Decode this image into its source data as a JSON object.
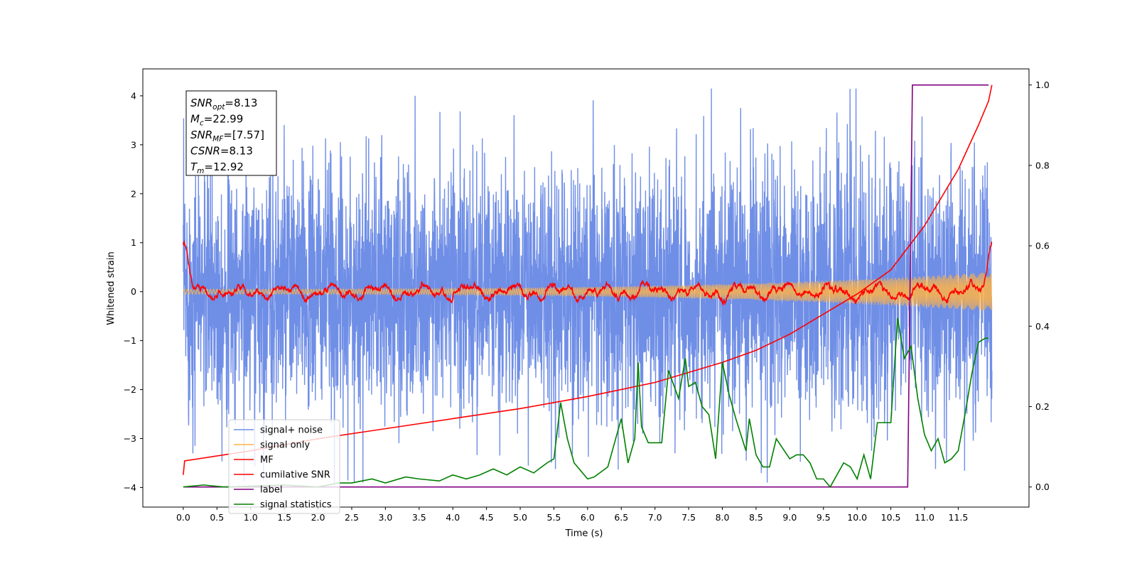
{
  "chart_data": {
    "type": "line",
    "xlabel": "Time (s)",
    "ylabel": "Whitened strain",
    "xlim": [
      -0.6,
      12.55
    ],
    "ylim": [
      -4.4,
      4.55
    ],
    "y2lim": [
      -0.05,
      1.04
    ],
    "x_ticks": [
      "0.0",
      "0.5",
      "1.0",
      "1.5",
      "2.0",
      "2.5",
      "3.0",
      "3.5",
      "4.0",
      "4.5",
      "5.0",
      "5.5",
      "6.0",
      "6.5",
      "7.0",
      "7.5",
      "8.0",
      "8.5",
      "9.0",
      "9.5",
      "10.0",
      "10.5",
      "11.0",
      "11.5"
    ],
    "x_tick_values": [
      0,
      0.5,
      1,
      1.5,
      2,
      2.5,
      3,
      3.5,
      4,
      4.5,
      5,
      5.5,
      6,
      6.5,
      7,
      7.5,
      8,
      8.5,
      9,
      9.5,
      10,
      10.5,
      11,
      11.5
    ],
    "y_ticks": [
      "−4",
      "−3",
      "−2",
      "−1",
      "0",
      "1",
      "2",
      "3",
      "4"
    ],
    "y_tick_values": [
      -4,
      -3,
      -2,
      -1,
      0,
      1,
      2,
      3,
      4
    ],
    "y2_ticks": [
      "0.0",
      "0.2",
      "0.4",
      "0.6",
      "0.8",
      "1.0"
    ],
    "y2_tick_values": [
      0,
      0.2,
      0.4,
      0.6,
      0.8,
      1.0
    ],
    "grid": false,
    "legend_position": "lower-left",
    "annotation": {
      "lines": [
        {
          "base": "SNR",
          "sub": "opt",
          "value": "=8.13"
        },
        {
          "base": "M",
          "sub": "c",
          "value": "=22.99"
        },
        {
          "base": "SNR",
          "sub": "MF",
          "value": "=[7.57]"
        },
        {
          "base": "CSNR",
          "sub": "",
          "value": "=8.13"
        },
        {
          "base": "T",
          "sub": "m",
          "value": "=12.92"
        }
      ]
    },
    "series": [
      {
        "name": "signal+ noise",
        "color": "#6f8ee6",
        "axis": "left",
        "kind": "noise",
        "x_range": [
          0,
          12.0
        ],
        "envelope": [
          -3.9,
          4.15
        ],
        "sigma": 1.0
      },
      {
        "name": "signal only",
        "color": "#ffb347",
        "axis": "left",
        "kind": "chirp",
        "x_range": [
          0,
          12.0
        ],
        "amplitude_start": 0.05,
        "amplitude_end": 0.4
      },
      {
        "name": "MF",
        "color": "#ff0000",
        "axis": "left",
        "kind": "mf",
        "x": [
          0.0,
          0.05,
          0.1,
          0.15,
          11.8,
          11.9,
          11.95,
          12.0
        ],
        "y": [
          0.93,
          0.75,
          0.3,
          0.0,
          0.0,
          0.35,
          0.7,
          1.0
        ]
      },
      {
        "name": "cumilative SNR",
        "color": "#ff0000",
        "axis": "right",
        "x": [
          0.0,
          0.02,
          1.0,
          2.0,
          3.0,
          4.0,
          5.0,
          6.0,
          7.0,
          7.5,
          8.0,
          8.5,
          9.0,
          9.5,
          10.0,
          10.5,
          11.0,
          11.5,
          11.8,
          11.95,
          12.0
        ],
        "y": [
          0.03,
          0.065,
          0.09,
          0.12,
          0.145,
          0.17,
          0.195,
          0.225,
          0.26,
          0.285,
          0.31,
          0.34,
          0.38,
          0.43,
          0.48,
          0.54,
          0.65,
          0.79,
          0.9,
          0.96,
          1.0
        ]
      },
      {
        "name": "label",
        "color": "#800080",
        "axis": "right",
        "x": [
          0.0,
          10.75,
          10.82,
          11.95
        ],
        "y": [
          0.0,
          0.0,
          1.0,
          1.0
        ]
      },
      {
        "name": "signal statistics",
        "color": "#008000",
        "axis": "right",
        "x": [
          0.0,
          0.3,
          0.6,
          1.0,
          1.5,
          2.0,
          2.3,
          2.5,
          2.8,
          3.0,
          3.3,
          3.5,
          3.8,
          4.0,
          4.2,
          4.4,
          4.6,
          4.8,
          5.0,
          5.2,
          5.4,
          5.5,
          5.6,
          5.7,
          5.8,
          5.9,
          6.0,
          6.1,
          6.3,
          6.5,
          6.6,
          6.7,
          6.75,
          6.8,
          6.9,
          7.1,
          7.2,
          7.35,
          7.45,
          7.5,
          7.6,
          7.7,
          7.8,
          7.9,
          8.0,
          8.1,
          8.2,
          8.35,
          8.4,
          8.5,
          8.6,
          8.7,
          8.8,
          9.0,
          9.1,
          9.2,
          9.3,
          9.4,
          9.5,
          9.6,
          9.8,
          9.9,
          10.0,
          10.1,
          10.2,
          10.3,
          10.4,
          10.5,
          10.6,
          10.7,
          10.8,
          10.9,
          11.0,
          11.1,
          11.2,
          11.3,
          11.4,
          11.5,
          11.6,
          11.7,
          11.8,
          11.9,
          11.95
        ],
        "y": [
          0.0,
          0.005,
          0.0,
          0.002,
          0.005,
          0.0,
          0.01,
          0.01,
          0.02,
          0.01,
          0.025,
          0.02,
          0.015,
          0.03,
          0.02,
          0.03,
          0.045,
          0.03,
          0.05,
          0.035,
          0.06,
          0.07,
          0.21,
          0.12,
          0.06,
          0.04,
          0.02,
          0.025,
          0.05,
          0.17,
          0.06,
          0.12,
          0.31,
          0.15,
          0.11,
          0.11,
          0.29,
          0.22,
          0.32,
          0.25,
          0.26,
          0.2,
          0.18,
          0.07,
          0.31,
          0.23,
          0.17,
          0.09,
          0.17,
          0.08,
          0.05,
          0.05,
          0.12,
          0.07,
          0.08,
          0.08,
          0.06,
          0.02,
          0.02,
          0.0,
          0.06,
          0.05,
          0.02,
          0.08,
          0.02,
          0.16,
          0.16,
          0.16,
          0.42,
          0.32,
          0.35,
          0.22,
          0.13,
          0.09,
          0.12,
          0.06,
          0.07,
          0.09,
          0.18,
          0.28,
          0.36,
          0.37,
          0.37
        ]
      }
    ]
  }
}
